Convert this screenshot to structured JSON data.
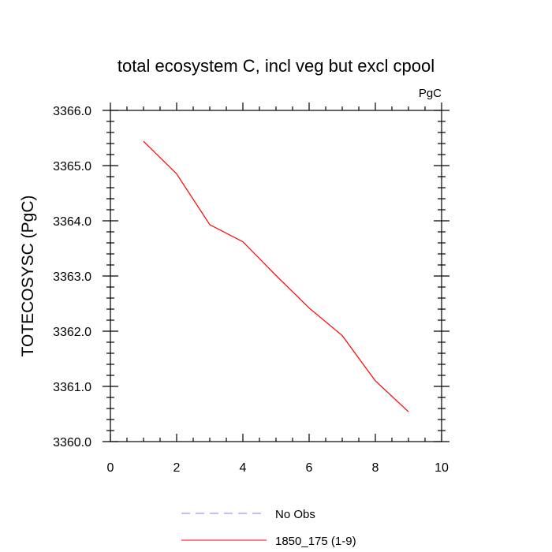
{
  "chart_data": {
    "type": "line",
    "title": "total ecosystem C, incl veg but excl cpool",
    "units_label": "PgC",
    "xlabel": "",
    "ylabel": "TOTECOSYSC  (PgC)",
    "xlim": [
      0,
      10
    ],
    "ylim": [
      3360.0,
      3366.0
    ],
    "x_ticks": [
      0,
      2,
      4,
      6,
      8,
      10
    ],
    "x_tick_labels": [
      "0",
      "2",
      "4",
      "6",
      "8",
      "10"
    ],
    "y_ticks": [
      3360.0,
      3361.0,
      3362.0,
      3363.0,
      3364.0,
      3365.0,
      3366.0
    ],
    "y_tick_labels": [
      "3360.0",
      "3361.0",
      "3362.0",
      "3363.0",
      "3364.0",
      "3365.0",
      "3366.0"
    ],
    "grid": false,
    "series": [
      {
        "name": "1850_175 (1-9)",
        "color": "#ff0000",
        "x": [
          1,
          2,
          3,
          4,
          5,
          6,
          7,
          8,
          9
        ],
        "values": [
          3365.44,
          3364.85,
          3363.93,
          3363.62,
          3363.01,
          3362.42,
          3361.92,
          3361.1,
          3360.54
        ]
      }
    ],
    "legend": {
      "placement": "bottom-left",
      "entries": [
        {
          "label": "No Obs",
          "color": "#8080ff",
          "style": "dashed"
        },
        {
          "label": "1850_175 (1-9)",
          "color": "#ff0000",
          "style": "solid"
        }
      ]
    }
  }
}
